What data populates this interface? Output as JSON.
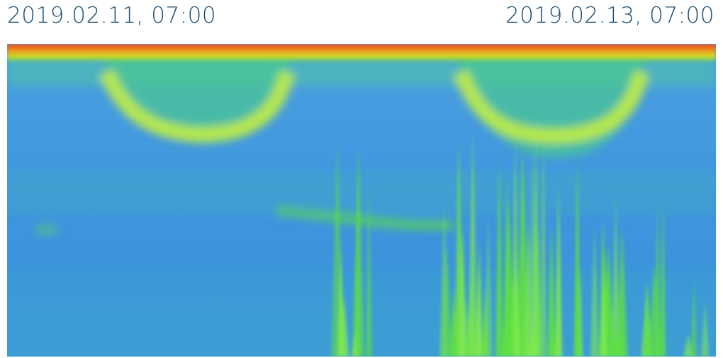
{
  "header": {
    "start_time": "2019.02.11, 07:00",
    "end_time": "2019.02.13, 07:00"
  }
}
